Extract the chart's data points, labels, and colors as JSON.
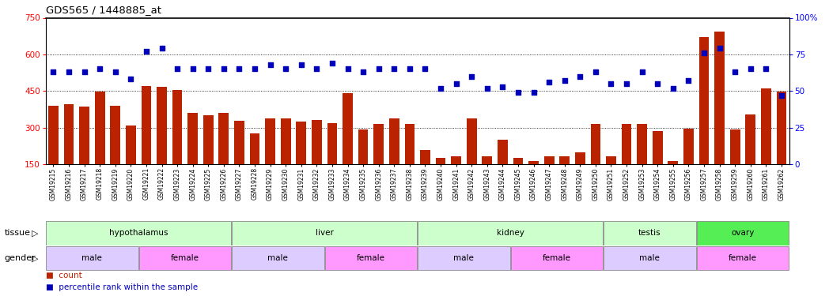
{
  "title": "GDS565 / 1448885_at",
  "samples": [
    "GSM19215",
    "GSM19216",
    "GSM19217",
    "GSM19218",
    "GSM19219",
    "GSM19220",
    "GSM19221",
    "GSM19222",
    "GSM19223",
    "GSM19224",
    "GSM19225",
    "GSM19226",
    "GSM19227",
    "GSM19228",
    "GSM19229",
    "GSM19230",
    "GSM19231",
    "GSM19232",
    "GSM19233",
    "GSM19234",
    "GSM19235",
    "GSM19236",
    "GSM19237",
    "GSM19238",
    "GSM19239",
    "GSM19240",
    "GSM19241",
    "GSM19242",
    "GSM19243",
    "GSM19244",
    "GSM19245",
    "GSM19246",
    "GSM19247",
    "GSM19248",
    "GSM19249",
    "GSM19250",
    "GSM19251",
    "GSM19252",
    "GSM19253",
    "GSM19254",
    "GSM19255",
    "GSM19256",
    "GSM19257",
    "GSM19258",
    "GSM19259",
    "GSM19260",
    "GSM19261",
    "GSM19262"
  ],
  "counts": [
    390,
    395,
    385,
    448,
    390,
    308,
    472,
    468,
    455,
    360,
    350,
    362,
    328,
    275,
    337,
    338,
    326,
    330,
    320,
    440,
    292,
    314,
    338,
    315,
    210,
    175,
    183,
    337,
    183,
    250,
    175,
    163,
    183,
    183,
    200,
    315,
    183,
    315,
    315,
    285,
    163,
    295,
    670,
    695,
    292,
    355,
    460,
    447
  ],
  "percentiles": [
    63,
    63,
    63,
    65,
    63,
    58,
    77,
    79,
    65,
    65,
    65,
    65,
    65,
    65,
    68,
    65,
    68,
    65,
    69,
    65,
    63,
    65,
    65,
    65,
    65,
    52,
    55,
    60,
    52,
    53,
    49,
    49,
    56,
    57,
    60,
    63,
    55,
    55,
    63,
    55,
    52,
    57,
    76,
    79,
    63,
    65,
    65,
    47
  ],
  "ylim_left": [
    150,
    750
  ],
  "ylim_right": [
    0,
    100
  ],
  "yticks_left": [
    150,
    300,
    450,
    600,
    750
  ],
  "yticks_right": [
    0,
    25,
    50,
    75,
    100
  ],
  "bar_color": "#bb2200",
  "dot_color": "#0000bb",
  "tissue_groups": [
    {
      "label": "hypothalamus",
      "start": 0,
      "end": 11,
      "color": "#ccffcc"
    },
    {
      "label": "liver",
      "start": 12,
      "end": 23,
      "color": "#ccffcc"
    },
    {
      "label": "kidney",
      "start": 24,
      "end": 35,
      "color": "#ccffcc"
    },
    {
      "label": "testis",
      "start": 36,
      "end": 41,
      "color": "#ccffcc"
    },
    {
      "label": "ovary",
      "start": 42,
      "end": 47,
      "color": "#55ee55"
    }
  ],
  "gender_groups": [
    {
      "label": "male",
      "start": 0,
      "end": 5,
      "color": "#ddccff"
    },
    {
      "label": "female",
      "start": 6,
      "end": 11,
      "color": "#ff99ff"
    },
    {
      "label": "male",
      "start": 12,
      "end": 17,
      "color": "#ddccff"
    },
    {
      "label": "female",
      "start": 18,
      "end": 23,
      "color": "#ff99ff"
    },
    {
      "label": "male",
      "start": 24,
      "end": 29,
      "color": "#ddccff"
    },
    {
      "label": "female",
      "start": 30,
      "end": 35,
      "color": "#ff99ff"
    },
    {
      "label": "male",
      "start": 36,
      "end": 41,
      "color": "#ddccff"
    },
    {
      "label": "female",
      "start": 42,
      "end": 47,
      "color": "#ff99ff"
    }
  ]
}
